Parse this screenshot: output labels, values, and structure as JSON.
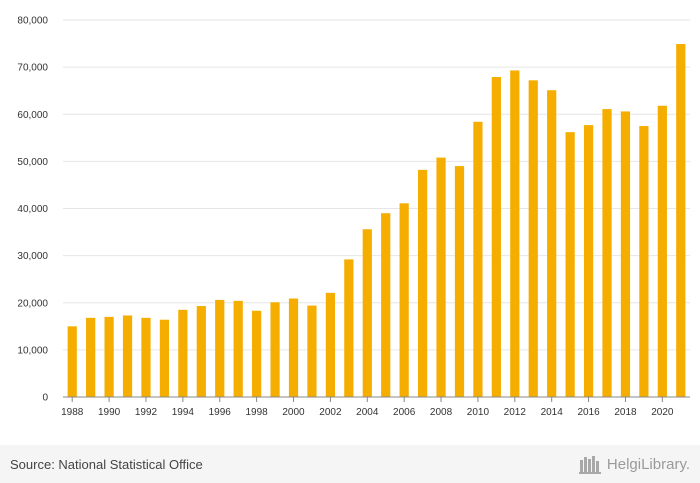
{
  "chart_data": {
    "type": "bar",
    "title": "",
    "xlabel": "",
    "ylabel": "",
    "ylim": [
      0,
      80000
    ],
    "yticks": [
      0,
      10000,
      20000,
      30000,
      40000,
      50000,
      60000,
      70000,
      80000
    ],
    "ytick_labels": [
      "0",
      "10,000",
      "20,000",
      "30,000",
      "40,000",
      "50,000",
      "60,000",
      "70,000",
      "80,000"
    ],
    "xtick_labels": [
      "1988",
      "1990",
      "1992",
      "1994",
      "1996",
      "1998",
      "2000",
      "2002",
      "2004",
      "2006",
      "2008",
      "2010",
      "2012",
      "2014",
      "2016",
      "2018",
      "2020"
    ],
    "categories": [
      "1988",
      "1989",
      "1990",
      "1991",
      "1992",
      "1993",
      "1994",
      "1995",
      "1996",
      "1997",
      "1998",
      "1999",
      "2000",
      "2001",
      "2002",
      "2003",
      "2004",
      "2005",
      "2006",
      "2007",
      "2008",
      "2009",
      "2010",
      "2011",
      "2012",
      "2013",
      "2014",
      "2015",
      "2016",
      "2017",
      "2018",
      "2019",
      "2020",
      "2021"
    ],
    "values": [
      15000,
      16800,
      17000,
      17300,
      16800,
      16400,
      18500,
      19300,
      20600,
      20400,
      18300,
      20100,
      20900,
      19400,
      22100,
      29200,
      35600,
      39000,
      41100,
      48200,
      50800,
      49000,
      58400,
      67900,
      69300,
      67200,
      65100,
      56200,
      57700,
      61100,
      60600,
      57500,
      61800,
      74900
    ],
    "colors": {
      "bar": "#f5ae00",
      "grid": "#e6e6e6",
      "axis": "#888888"
    },
    "grid": true,
    "legend": "none"
  },
  "footer": {
    "source": "Source: National Statistical Office",
    "brand": "HelgiLibrary."
  }
}
